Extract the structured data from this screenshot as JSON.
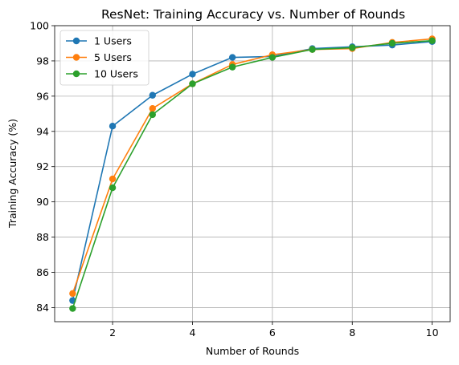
{
  "chart_data": {
    "type": "line",
    "title": "ResNet: Training Accuracy vs. Number of Rounds",
    "xlabel": "Number of Rounds",
    "ylabel": "Training Accuracy (%)",
    "x": [
      1,
      2,
      3,
      4,
      5,
      6,
      7,
      8,
      9,
      10
    ],
    "xlim": [
      0.55,
      10.45
    ],
    "ylim": [
      83.2,
      100
    ],
    "xticks": [
      2,
      4,
      6,
      8,
      10
    ],
    "yticks": [
      84,
      86,
      88,
      90,
      92,
      94,
      96,
      98,
      100
    ],
    "grid": true,
    "legend_position": "top-left",
    "series": [
      {
        "name": "1 Users",
        "color": "#1f77b4",
        "marker": "circle",
        "values": [
          84.4,
          94.3,
          96.05,
          97.25,
          98.2,
          98.25,
          98.7,
          98.8,
          98.9,
          99.1
        ]
      },
      {
        "name": "5 Users",
        "color": "#ff7f0e",
        "marker": "circle",
        "values": [
          84.8,
          91.3,
          95.3,
          96.7,
          97.8,
          98.35,
          98.65,
          98.7,
          99.05,
          99.25
        ]
      },
      {
        "name": "10 Users",
        "color": "#2ca02c",
        "marker": "circle",
        "values": [
          83.95,
          90.8,
          94.95,
          96.7,
          97.65,
          98.2,
          98.65,
          98.75,
          99.0,
          99.15
        ]
      }
    ]
  }
}
